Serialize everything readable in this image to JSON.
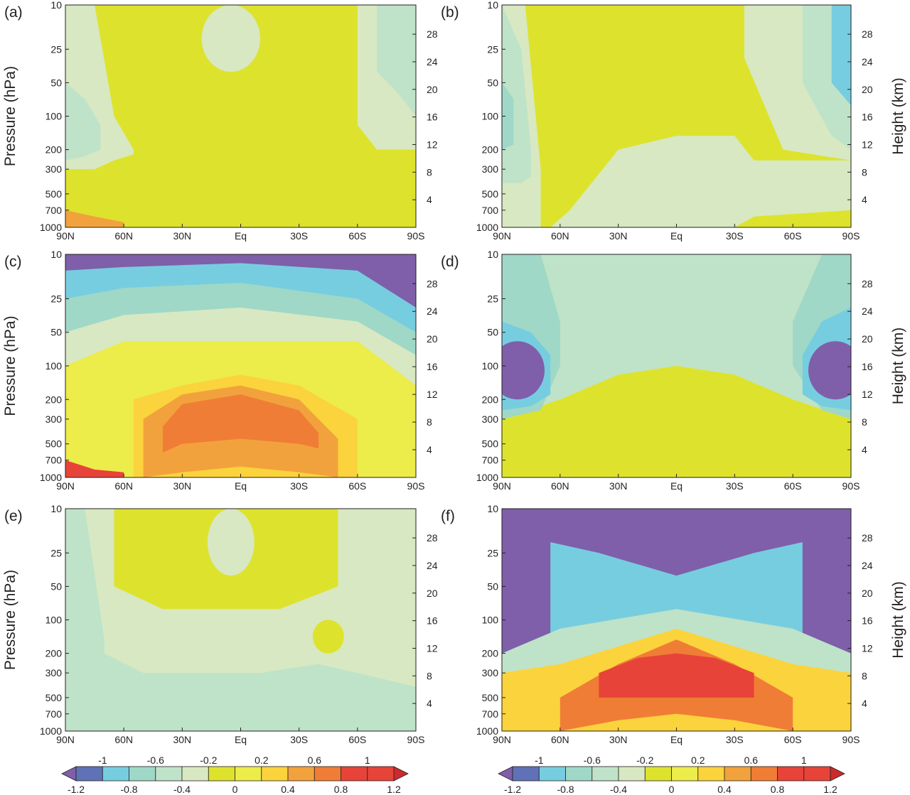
{
  "chart_data": {
    "type": "heatmap",
    "labels": {
      "y_left": "Pressure (hPa)",
      "y_right": "Height (km)"
    },
    "x_ticks": [
      "90N",
      "60N",
      "30N",
      "Eq",
      "30S",
      "60S",
      "90S"
    ],
    "x_values": [
      90,
      60,
      30,
      0,
      -30,
      -60,
      -90
    ],
    "xlim": [
      90,
      -90
    ],
    "pressure_ticks": [
      "10",
      "25",
      "50",
      "100",
      "200",
      "300",
      "500",
      "700",
      "1000"
    ],
    "pressure_values": [
      10,
      25,
      50,
      100,
      200,
      300,
      500,
      700,
      1000
    ],
    "pressure_scale": "log",
    "height_ticks": [
      "4",
      "8",
      "12",
      "16",
      "20",
      "24",
      "28"
    ],
    "height_values": [
      4,
      8,
      12,
      16,
      20,
      24,
      28
    ],
    "colorbar": {
      "levels": [
        -1.2,
        -1,
        -0.8,
        -0.6,
        -0.4,
        -0.2,
        0,
        0.2,
        0.4,
        0.6,
        0.8,
        1,
        1.2
      ],
      "level_labels": [
        "-1.2",
        "-1",
        "-0.8",
        "-0.6",
        "-0.4",
        "-0.2",
        "0",
        "0.2",
        "0.4",
        "0.6",
        "0.8",
        "1",
        "1.2"
      ],
      "colors": [
        "#7f5fa9",
        "#5f72b7",
        "#77cde0",
        "#9fd8c6",
        "#bfe3c8",
        "#d8e8c2",
        "#dde32c",
        "#ecec4a",
        "#fbd33c",
        "#f2a23c",
        "#f07d36",
        "#e84338",
        "#cb2b2e"
      ],
      "extend": "both"
    },
    "panels": [
      {
        "label": "(a)",
        "background": "#dde32c",
        "features": [
          {
            "kind": "band",
            "lats": [
              90,
              60,
              30,
              0,
              -30,
              -55,
              -90
            ],
            "p_top": [
              300,
              500,
              500,
              300,
              200,
              300,
              300
            ],
            "p_bot": [
              1000,
              1000,
              1000,
              500,
              500,
              500,
              500
            ],
            "value": 0.1
          },
          {
            "kind": "band",
            "lats": [
              90,
              75,
              65,
              55
            ],
            "p_top": [
              10,
              10,
              100,
              200
            ],
            "p_bot": [
              300,
              300,
              250,
              220
            ],
            "value": -0.2
          },
          {
            "kind": "band",
            "lats": [
              90,
              80,
              72
            ],
            "p_top": [
              50,
              70,
              120
            ],
            "p_bot": [
              250,
              230,
              200
            ],
            "value": -0.4
          },
          {
            "kind": "blob",
            "lat": 5,
            "p": [
              10,
              40
            ],
            "w": 15,
            "value": -0.2
          },
          {
            "kind": "band",
            "lats": [
              -60,
              -70,
              -80,
              -90
            ],
            "p_top": [
              10,
              10,
              10,
              10
            ],
            "p_bot": [
              120,
              200,
              200,
              200
            ],
            "value": -0.2
          },
          {
            "kind": "band",
            "lats": [
              -70,
              -80,
              -90
            ],
            "p_top": [
              10,
              10,
              10
            ],
            "p_bot": [
              40,
              60,
              100
            ],
            "value": -0.4
          },
          {
            "kind": "band",
            "lats": [
              90,
              75,
              60
            ],
            "p_top": [
              700,
              800,
              900
            ],
            "p_bot": [
              1000,
              1000,
              1000
            ],
            "value": 0.6
          }
        ]
      },
      {
        "label": "(b)",
        "background": "#dde32c",
        "features": [
          {
            "kind": "band",
            "lats": [
              65,
              55,
              30,
              0,
              -30,
              -40,
              -90
            ],
            "p_top": [
              1000,
              700,
              200,
              150,
              150,
              250,
              250
            ],
            "p_bot": [
              1000,
              1000,
              1000,
              1000,
              1000,
              800,
              700
            ],
            "value": -0.2
          },
          {
            "kind": "band",
            "lats": [
              90,
              78,
              70
            ],
            "p_top": [
              10,
              10,
              300
            ],
            "p_bot": [
              1000,
              1000,
              1000
            ],
            "value": -0.2
          },
          {
            "kind": "band",
            "lats": [
              90,
              80,
              75
            ],
            "p_top": [
              10,
              25,
              200
            ],
            "p_bot": [
              400,
              400,
              350
            ],
            "value": -0.4
          },
          {
            "kind": "band",
            "lats": [
              90,
              84
            ],
            "p_top": [
              50,
              70
            ],
            "p_bot": [
              200,
              180
            ],
            "value": -0.6
          },
          {
            "kind": "band",
            "lats": [
              -35,
              -55,
              -90
            ],
            "p_top": [
              10,
              10,
              10
            ],
            "p_bot": [
              30,
              200,
              250
            ],
            "value": -0.2
          },
          {
            "kind": "band",
            "lats": [
              -65,
              -80,
              -90
            ],
            "p_top": [
              10,
              10,
              10
            ],
            "p_bot": [
              50,
              150,
              200
            ],
            "value": -0.4
          },
          {
            "kind": "band",
            "lats": [
              -80,
              -90
            ],
            "p_top": [
              10,
              10
            ],
            "p_bot": [
              50,
              80
            ],
            "value": -0.8
          }
        ]
      },
      {
        "label": "(c)",
        "background": "#ecec4a",
        "features": [
          {
            "kind": "band",
            "lats": [
              90,
              60,
              0,
              -60,
              -90
            ],
            "p_top": [
              10,
              10,
              10,
              10,
              10
            ],
            "p_bot": [
              100,
              60,
              60,
              60,
              150
            ],
            "value": -0.2
          },
          {
            "kind": "band",
            "lats": [
              90,
              60,
              0,
              -60,
              -90
            ],
            "p_top": [
              10,
              10,
              10,
              10,
              10
            ],
            "p_bot": [
              50,
              35,
              30,
              40,
              80
            ],
            "value": -0.6
          },
          {
            "kind": "band",
            "lats": [
              90,
              60,
              0,
              -60,
              -90
            ],
            "p_top": [
              10,
              10,
              10,
              10,
              10
            ],
            "p_bot": [
              25,
              20,
              18,
              25,
              50
            ],
            "value": -0.8
          },
          {
            "kind": "band",
            "lats": [
              90,
              60,
              0,
              -60,
              -90
            ],
            "p_top": [
              10,
              10,
              10,
              10,
              10
            ],
            "p_bot": [
              14,
              13,
              12,
              14,
              30
            ],
            "value": -1.2
          },
          {
            "kind": "band",
            "lats": [
              55,
              30,
              0,
              -30,
              -60
            ],
            "p_top": [
              200,
              150,
              120,
              150,
              300
            ],
            "p_bot": [
              1000,
              1000,
              1000,
              1000,
              1000
            ],
            "value": 0.4
          },
          {
            "kind": "band",
            "lats": [
              50,
              30,
              0,
              -30,
              -50
            ],
            "p_top": [
              300,
              180,
              150,
              200,
              450
            ],
            "p_bot": [
              1000,
              900,
              800,
              900,
              1000
            ],
            "value": 0.6
          },
          {
            "kind": "band",
            "lats": [
              40,
              30,
              0,
              -30,
              -40
            ],
            "p_top": [
              350,
              220,
              180,
              250,
              400
            ],
            "p_bot": [
              600,
              500,
              450,
              500,
              550
            ],
            "value": 0.8
          },
          {
            "kind": "band",
            "lats": [
              90,
              75,
              60
            ],
            "p_top": [
              700,
              850,
              900
            ],
            "p_bot": [
              1000,
              1000,
              1000
            ],
            "value": 1.0
          }
        ]
      },
      {
        "label": "(d)",
        "background": "#dde32c",
        "features": [
          {
            "kind": "band",
            "lats": [
              90,
              60,
              30,
              0,
              -30,
              -60,
              -90
            ],
            "p_top": [
              10,
              10,
              10,
              10,
              10,
              10,
              10
            ],
            "p_bot": [
              300,
              200,
              120,
              100,
              120,
              200,
              300
            ],
            "value": -0.4
          },
          {
            "kind": "band",
            "lats": [
              90,
              70,
              60
            ],
            "p_top": [
              10,
              10,
              40
            ],
            "p_bot": [
              300,
              250,
              100
            ],
            "value": -0.6
          },
          {
            "kind": "band",
            "lats": [
              -60,
              -75,
              -90
            ],
            "p_top": [
              40,
              10,
              10
            ],
            "p_bot": [
              100,
              250,
              300
            ],
            "value": -0.6
          },
          {
            "kind": "band",
            "lats": [
              90,
              75,
              65
            ],
            "p_top": [
              40,
              50,
              80
            ],
            "p_bot": [
              250,
              230,
              180
            ],
            "value": -0.8
          },
          {
            "kind": "band",
            "lats": [
              -65,
              -75,
              -90
            ],
            "p_top": [
              80,
              40,
              30
            ],
            "p_bot": [
              180,
              230,
              250
            ],
            "value": -0.8
          },
          {
            "kind": "blob",
            "lat": 82,
            "p": [
              60,
              200
            ],
            "w": 14,
            "value": -1.2
          },
          {
            "kind": "blob",
            "lat": -82,
            "p": [
              60,
              200
            ],
            "w": 14,
            "value": -1.2
          }
        ]
      },
      {
        "label": "(e)",
        "background": "#d8e8c2",
        "features": [
          {
            "kind": "band",
            "lats": [
              65,
              40,
              10,
              -20,
              -50
            ],
            "p_top": [
              10,
              10,
              10,
              10,
              10
            ],
            "p_bot": [
              50,
              80,
              80,
              80,
              50
            ],
            "value": 0.0
          },
          {
            "kind": "band",
            "lats": [
              90,
              70,
              50,
              20,
              -10,
              -40,
              -60,
              -90
            ],
            "p_top": [
              200,
              200,
              300,
              300,
              300,
              250,
              300,
              400
            ],
            "p_bot": [
              1000,
              1000,
              1000,
              1000,
              1000,
              1000,
              1000,
              1000
            ],
            "value": -0.4
          },
          {
            "kind": "band",
            "lats": [
              90,
              80,
              70
            ],
            "p_top": [
              10,
              10,
              150
            ],
            "p_bot": [
              1000,
              1000,
              1000
            ],
            "value": -0.4
          },
          {
            "kind": "blob",
            "lat": -45,
            "p": [
              100,
              200
            ],
            "w": 8,
            "value": 0.0
          },
          {
            "kind": "blob",
            "lat": 5,
            "p": [
              10,
              40
            ],
            "w": 12,
            "value": -0.2
          }
        ]
      },
      {
        "label": "(f)",
        "background": "#7f5fa9",
        "features": [
          {
            "kind": "band",
            "lats": [
              65,
              40,
              0,
              -40,
              -65
            ],
            "p_top": [
              20,
              25,
              40,
              25,
              20
            ],
            "p_bot": [
              200,
              150,
              100,
              150,
              200
            ],
            "value": -0.8
          },
          {
            "kind": "band",
            "lats": [
              90,
              60,
              0,
              -60,
              -90
            ],
            "p_top": [
              200,
              120,
              80,
              120,
              200
            ],
            "p_bot": [
              1000,
              1000,
              1000,
              1000,
              1000
            ],
            "value": -0.4
          },
          {
            "kind": "band",
            "lats": [
              90,
              60,
              0,
              -60,
              -90
            ],
            "p_top": [
              300,
              250,
              120,
              250,
              300
            ],
            "p_bot": [
              1000,
              1000,
              1000,
              1000,
              1000
            ],
            "value": 0.4
          },
          {
            "kind": "band",
            "lats": [
              60,
              30,
              0,
              -30,
              -60
            ],
            "p_top": [
              500,
              250,
              150,
              250,
              500
            ],
            "p_bot": [
              1000,
              800,
              700,
              800,
              1000
            ],
            "value": 0.8
          },
          {
            "kind": "band",
            "lats": [
              40,
              20,
              0,
              -20,
              -40
            ],
            "p_top": [
              300,
              220,
              200,
              220,
              300
            ],
            "p_bot": [
              500,
              500,
              500,
              500,
              500
            ],
            "value": 1.0
          }
        ]
      }
    ]
  }
}
